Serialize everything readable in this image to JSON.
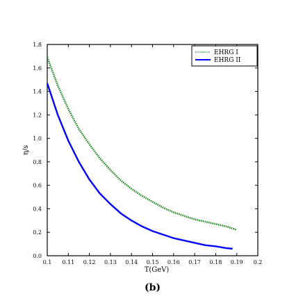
{
  "chart_data": {
    "type": "line",
    "title": "",
    "xlabel": "T(GeV)",
    "ylabel": "η/s",
    "caption": "(b)",
    "xlim": [
      0.1,
      0.2
    ],
    "ylim": [
      0.0,
      1.8
    ],
    "x_ticks": [
      "0.1",
      "0.11",
      "0.12",
      "0.13",
      "0.14",
      "0.15",
      "0.16",
      "0.17",
      "0.18",
      "0.19",
      "0.2"
    ],
    "y_ticks": [
      "0.0",
      "0.2",
      "0.4",
      "0.6",
      "0.8",
      "1.0",
      "1.2",
      "1.4",
      "1.6",
      "1.8"
    ],
    "legend": "top-right",
    "grid": false,
    "series": [
      {
        "name": "EHRG I",
        "color": "#228B22",
        "style": "dotted",
        "x": [
          0.1,
          0.105,
          0.11,
          0.115,
          0.12,
          0.125,
          0.13,
          0.135,
          0.14,
          0.145,
          0.15,
          0.155,
          0.16,
          0.165,
          0.17,
          0.175,
          0.18,
          0.185,
          0.19
        ],
        "y": [
          1.69,
          1.45,
          1.25,
          1.08,
          0.95,
          0.83,
          0.73,
          0.64,
          0.57,
          0.51,
          0.46,
          0.41,
          0.37,
          0.34,
          0.31,
          0.29,
          0.27,
          0.25,
          0.22
        ]
      },
      {
        "name": "EHRG II",
        "color": "#0000FF",
        "style": "solid",
        "x": [
          0.1,
          0.105,
          0.11,
          0.115,
          0.12,
          0.125,
          0.13,
          0.135,
          0.14,
          0.145,
          0.15,
          0.155,
          0.16,
          0.165,
          0.17,
          0.175,
          0.18,
          0.185,
          0.188
        ],
        "y": [
          1.47,
          1.2,
          0.98,
          0.8,
          0.65,
          0.53,
          0.44,
          0.36,
          0.3,
          0.25,
          0.21,
          0.18,
          0.15,
          0.13,
          0.11,
          0.09,
          0.08,
          0.065,
          0.06
        ]
      }
    ]
  }
}
